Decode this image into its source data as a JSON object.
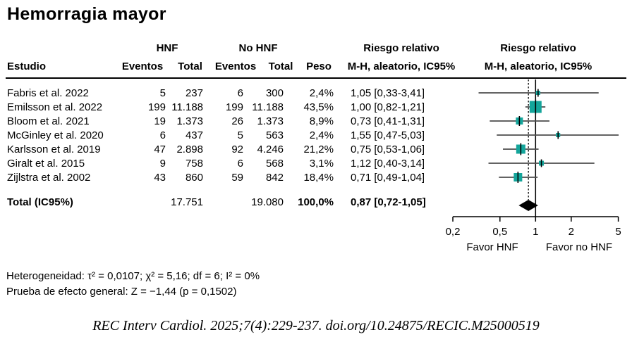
{
  "title": "Hemorragia mayor",
  "header": {
    "group_hnf": "HNF",
    "group_nohnf": "No HNF",
    "estudio": "Estudio",
    "eventos": "Eventos",
    "total": "Total",
    "peso": "Peso",
    "rr_line1": "Riesgo relativo",
    "rr_line2": "M-H, aleatorio, IC95%"
  },
  "chart_data": {
    "type": "forest",
    "x_scale": "log",
    "x_ticks": [
      {
        "value": 0.2,
        "label": "0,2"
      },
      {
        "value": 0.5,
        "label": "0,5"
      },
      {
        "value": 1,
        "label": "1"
      },
      {
        "value": 2,
        "label": "2"
      },
      {
        "value": 5,
        "label": "5"
      }
    ],
    "favor_left": "Favor HNF",
    "favor_right": "Favor no HNF",
    "studies": [
      {
        "name": "Fabris et al. 2022",
        "events_hnf": "5",
        "total_hnf": "237",
        "events_nohnf": "6",
        "total_nohnf": "300",
        "weight": "2,4%",
        "rr_text": "1,05 [0,33-3,41]",
        "rr": 1.05,
        "lo": 0.33,
        "hi": 3.41,
        "sq": 6
      },
      {
        "name": "Emilsson et al. 2022",
        "events_hnf": "199",
        "total_hnf": "11.188",
        "events_nohnf": "199",
        "total_nohnf": "11.188",
        "weight": "43,5%",
        "rr_text": "1,00 [0,82-1,21]",
        "rr": 1.0,
        "lo": 0.82,
        "hi": 1.21,
        "sq": 17
      },
      {
        "name": "Bloom et al. 2021",
        "events_hnf": "19",
        "total_hnf": "1.373",
        "events_nohnf": "26",
        "total_nohnf": "1.373",
        "weight": "8,9%",
        "rr_text": "0,73 [0,41-1,31]",
        "rr": 0.73,
        "lo": 0.41,
        "hi": 1.31,
        "sq": 10
      },
      {
        "name": "McGinley et al. 2020",
        "events_hnf": "6",
        "total_hnf": "437",
        "events_nohnf": "5",
        "total_nohnf": "563",
        "weight": "2,4%",
        "rr_text": "1,55 [0,47-5,03]",
        "rr": 1.55,
        "lo": 0.47,
        "hi": 5.03,
        "sq": 6
      },
      {
        "name": "Karlsson et al. 2019",
        "events_hnf": "47",
        "total_hnf": "2.898",
        "events_nohnf": "92",
        "total_nohnf": "4.246",
        "weight": "21,2%",
        "rr_text": "0,75 [0,53-1,06]",
        "rr": 0.75,
        "lo": 0.53,
        "hi": 1.06,
        "sq": 13
      },
      {
        "name": "Giralt et al. 2015",
        "events_hnf": "9",
        "total_hnf": "758",
        "events_nohnf": "6",
        "total_nohnf": "568",
        "weight": "3,1%",
        "rr_text": "1,12 [0,40-3,14]",
        "rr": 1.12,
        "lo": 0.4,
        "hi": 3.14,
        "sq": 7
      },
      {
        "name": "Zijlstra et al. 2002",
        "events_hnf": "43",
        "total_hnf": "860",
        "events_nohnf": "59",
        "total_nohnf": "842",
        "weight": "18,4%",
        "rr_text": "0,71 [0,49-1,04]",
        "rr": 0.71,
        "lo": 0.49,
        "hi": 1.04,
        "sq": 12
      }
    ],
    "total": {
      "name": "Total (IC95%)",
      "total_hnf": "17.751",
      "total_nohnf": "19.080",
      "weight": "100,0%",
      "rr_text": "0,87 [0,72-1,05]",
      "rr": 0.87,
      "lo": 0.72,
      "hi": 1.05
    },
    "colors": {
      "square": "#14a59b",
      "diamond": "#000000",
      "ci_line": "#4d4d4d",
      "axis": "#000000"
    }
  },
  "footnotes": {
    "heterogeneity": "Heterogeneidad: τ² = 0,0107; χ² = 5,16; df = 6; I² = 0%",
    "overall_effect": "Prueba de efecto general: Z = −1,44 (p = 0,1502)"
  },
  "citation": "REC Interv Cardiol. 2025;7(4):229-237. doi.org/10.24875/RECIC.M25000519"
}
